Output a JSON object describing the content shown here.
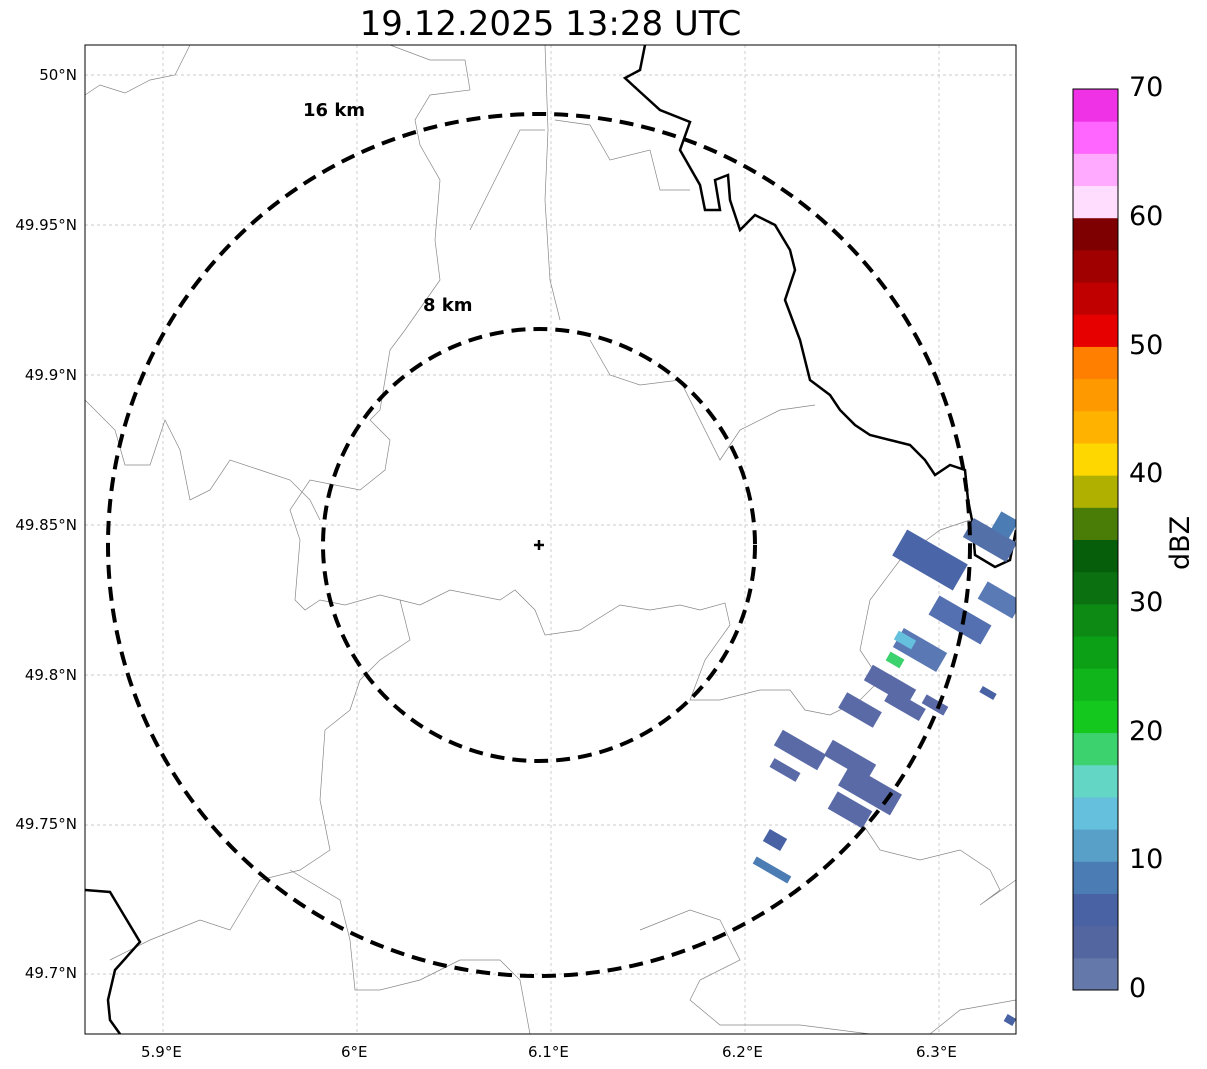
{
  "title": "19.12.2025 13:28 UTC",
  "map": {
    "lon_ticks": [
      "5.9°E",
      "6°E",
      "6.1°E",
      "6.2°E",
      "6.3°E"
    ],
    "lat_ticks": [
      "50°N",
      "49.95°N",
      "49.9°N",
      "49.85°N",
      "49.8°N",
      "49.75°N",
      "49.7°N"
    ],
    "range_rings": [
      {
        "label": "16 km",
        "radius_km": 16
      },
      {
        "label": "8 km",
        "radius_km": 8
      }
    ],
    "radar_site_icon": "plus-marker"
  },
  "colorbar": {
    "label": "dBZ",
    "ticks": [
      "0",
      "10",
      "20",
      "30",
      "40",
      "50",
      "60",
      "70"
    ],
    "range": [
      0,
      70
    ],
    "colors": [
      "#6478aa",
      "#5466a0",
      "#4862a4",
      "#4b7db4",
      "#58a0c8",
      "#64c0dc",
      "#64d6c6",
      "#3cd26e",
      "#14c81e",
      "#10b51c",
      "#0ca016",
      "#0c8a14",
      "#0a7010",
      "#065e0a",
      "#4a7c08",
      "#b0b000",
      "#ffd700",
      "#ffb300",
      "#ff9900",
      "#ff7f00",
      "#e60000",
      "#c00000",
      "#a00000",
      "#7f0000",
      "#ffddff",
      "#ffaaff",
      "#ff66ff",
      "#f032e6"
    ]
  }
}
